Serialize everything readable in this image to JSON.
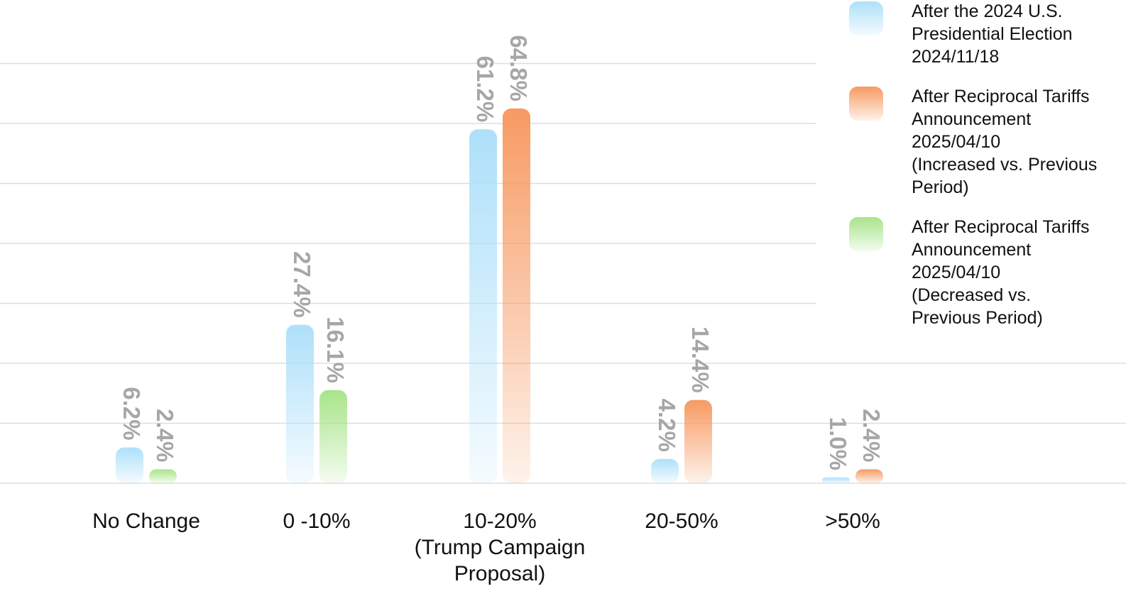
{
  "chart_data": {
    "type": "bar",
    "categories": [
      "No Change",
      "0 -10%",
      "10-20%\n(Trump Campaign\nProposal)",
      "20-50%",
      ">50%"
    ],
    "series": [
      {
        "name": "After the 2024 U.S.\nPresidential Election\n2024/11/18",
        "color": "#aee0fa",
        "values": [
          6.2,
          27.4,
          61.2,
          4.2,
          1.0
        ],
        "labels": [
          "6.2%",
          "27.4%",
          "61.2%",
          "4.2%",
          "1.0%"
        ]
      },
      {
        "name": "After Reciprocal Tariffs\nAnnouncement\n2025/04/10\n(Increased vs. Previous\nPeriod)",
        "color": "#f79a62",
        "values": [
          null,
          null,
          64.8,
          14.4,
          2.4
        ],
        "labels": [
          null,
          null,
          "64.8%",
          "14.4%",
          "2.4%"
        ]
      },
      {
        "name": "After Reciprocal Tariffs\nAnnouncement\n2025/04/10\n(Decreased vs.\nPrevious Period)",
        "color": "#a8e48a",
        "values": [
          2.4,
          16.1,
          null,
          null,
          null
        ],
        "labels": [
          "2.4%",
          "16.1%",
          null,
          null,
          null
        ]
      }
    ],
    "title": "",
    "xlabel": "",
    "ylabel": "",
    "ylim": [
      0,
      70
    ],
    "grid": true,
    "legend": "right",
    "bars_per_category": [
      [
        0,
        2
      ],
      [
        0,
        2
      ],
      [
        0,
        1
      ],
      [
        0,
        1
      ],
      [
        0,
        1
      ]
    ]
  }
}
